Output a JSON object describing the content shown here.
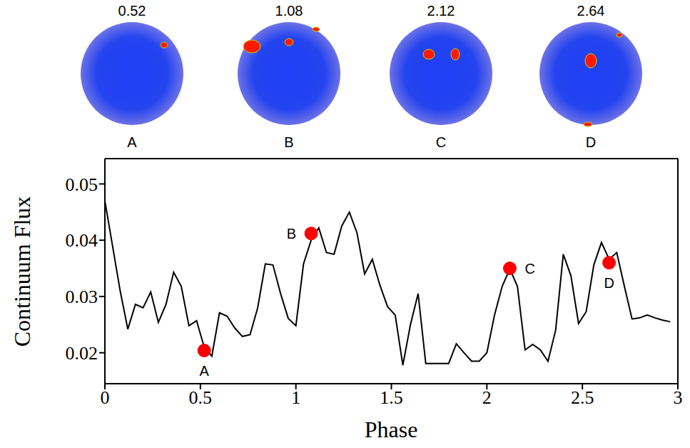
{
  "chart_data": {
    "type": "line",
    "xlabel": "Phase",
    "ylabel": "Continuum Flux",
    "color": "#000000",
    "x": [
      0,
      0.04,
      0.08,
      0.12,
      0.16,
      0.2,
      0.24,
      0.28,
      0.32,
      0.36,
      0.4,
      0.44,
      0.48,
      0.52,
      0.56,
      0.6,
      0.64,
      0.68,
      0.72,
      0.76,
      0.8,
      0.84,
      0.88,
      0.92,
      0.96,
      1.0,
      1.04,
      1.08,
      1.12,
      1.16,
      1.2,
      1.24,
      1.28,
      1.32,
      1.36,
      1.4,
      1.44,
      1.48,
      1.52,
      1.56,
      1.6,
      1.64,
      1.68,
      1.72,
      1.76,
      1.8,
      1.84,
      1.88,
      1.92,
      1.96,
      2.0,
      2.04,
      2.08,
      2.12,
      2.16,
      2.2,
      2.24,
      2.28,
      2.32,
      2.36,
      2.4,
      2.44,
      2.48,
      2.52,
      2.56,
      2.6,
      2.64,
      2.68,
      2.72,
      2.76,
      2.8,
      2.84,
      2.88,
      2.92,
      2.96
    ],
    "values": [
      0.047,
      0.039,
      0.031,
      0.0242,
      0.0286,
      0.028,
      0.0308,
      0.0254,
      0.0286,
      0.0343,
      0.0318,
      0.0248,
      0.0257,
      0.021,
      0.0194,
      0.0271,
      0.0265,
      0.0244,
      0.0229,
      0.0232,
      0.028,
      0.0358,
      0.0356,
      0.0305,
      0.0261,
      0.0248,
      0.0358,
      0.04,
      0.0422,
      0.0378,
      0.0375,
      0.0425,
      0.045,
      0.0413,
      0.034,
      0.0366,
      0.032,
      0.0282,
      0.0267,
      0.0178,
      0.025,
      0.0305,
      0.0181,
      0.0181,
      0.0181,
      0.0181,
      0.0216,
      0.02,
      0.0185,
      0.0185,
      0.02,
      0.0267,
      0.0318,
      0.0349,
      0.0318,
      0.0205,
      0.0215,
      0.0205,
      0.0185,
      0.024,
      0.0375,
      0.0337,
      0.0252,
      0.0273,
      0.0356,
      0.0396,
      0.0366,
      0.0378,
      0.0318,
      0.026,
      0.0262,
      0.0267,
      0.0262,
      0.0258,
      0.0255
    ],
    "xlim": [
      0,
      3
    ],
    "xticks": [
      0,
      0.5,
      1,
      1.5,
      2,
      2.5,
      3
    ],
    "ylim": [
      0.0145,
      0.0545
    ],
    "yticks": [
      0.02,
      0.03,
      0.04,
      0.05
    ],
    "highlights": {
      "color": "#ff0000",
      "marker": "circle",
      "points": [
        {
          "label": "A",
          "x": 0.52,
          "y": 0.0204
        },
        {
          "label": "B",
          "x": 1.08,
          "y": 0.0412
        },
        {
          "label": "C",
          "x": 2.12,
          "y": 0.035
        },
        {
          "label": "D",
          "x": 2.64,
          "y": 0.036
        }
      ]
    },
    "panels": [
      {
        "label": "A",
        "phase": 0.52
      },
      {
        "label": "B",
        "phase": 1.08
      },
      {
        "label": "C",
        "phase": 2.12
      },
      {
        "label": "D",
        "phase": 2.64
      }
    ]
  }
}
